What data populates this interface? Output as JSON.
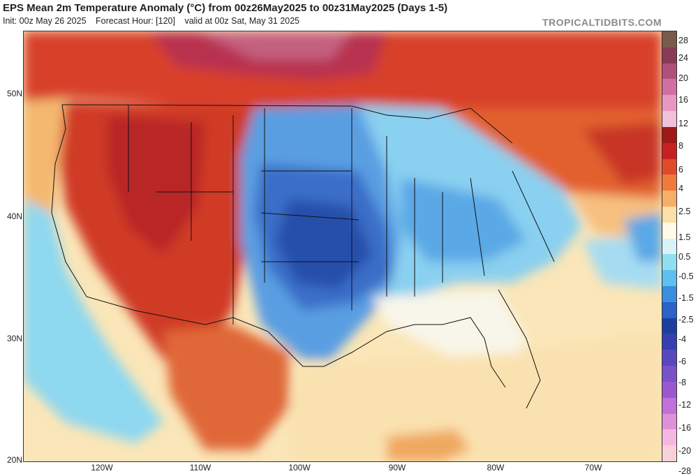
{
  "header": {
    "title": "EPS Mean 2m Temperature Anomaly (°C) from 00z26May2025 to 00z31May2025 (Days 1-5)",
    "init": "Init: 00z May 26 2025",
    "forecast_hour": "Forecast Hour: [120]",
    "valid": "valid at 00z Sat, May 31 2025",
    "credit": "TROPICALTIDBITS.COM"
  },
  "axes": {
    "lat_labels": [
      "50N",
      "40N",
      "30N",
      "20N"
    ],
    "lon_labels": [
      "120W",
      "110W",
      "100W",
      "90W",
      "80W",
      "70W"
    ]
  },
  "legend": {
    "labels": [
      "28",
      "24",
      "20",
      "16",
      "12",
      "8",
      "6",
      "4",
      "2.5",
      "1.5",
      "0.5",
      "-0.5",
      "-1.5",
      "-2.5",
      "-4",
      "-6",
      "-8",
      "-12",
      "-16",
      "-20",
      "-28"
    ],
    "colors": [
      "#7a5a4a",
      "#8a3a55",
      "#b0507a",
      "#d070a0",
      "#e898c0",
      "#f2c0d8",
      "#a01818",
      "#c82020",
      "#e04a28",
      "#f07a3c",
      "#f6ae68",
      "#fbe0a8",
      "#fffbe8",
      "#d8f4f8",
      "#8ee0f0",
      "#5ec0ee",
      "#3a8ede",
      "#2a62c8",
      "#1c3e9c",
      "#3440b0",
      "#5848c0",
      "#7a52c8",
      "#9a58d0",
      "#c070d8",
      "#e090d8",
      "#f4b8e0",
      "#f8d0d8"
    ]
  },
  "colors": {
    "warm_strong": "#c83a2a",
    "warm_mid": "#e86a38",
    "warm_light": "#f6b870",
    "neutral": "#fbe8c0",
    "cool_light": "#a6dcf2",
    "cool_mid": "#5aa2e2",
    "cool_strong": "#2a5cb8",
    "ocean": "#fae6b8"
  }
}
